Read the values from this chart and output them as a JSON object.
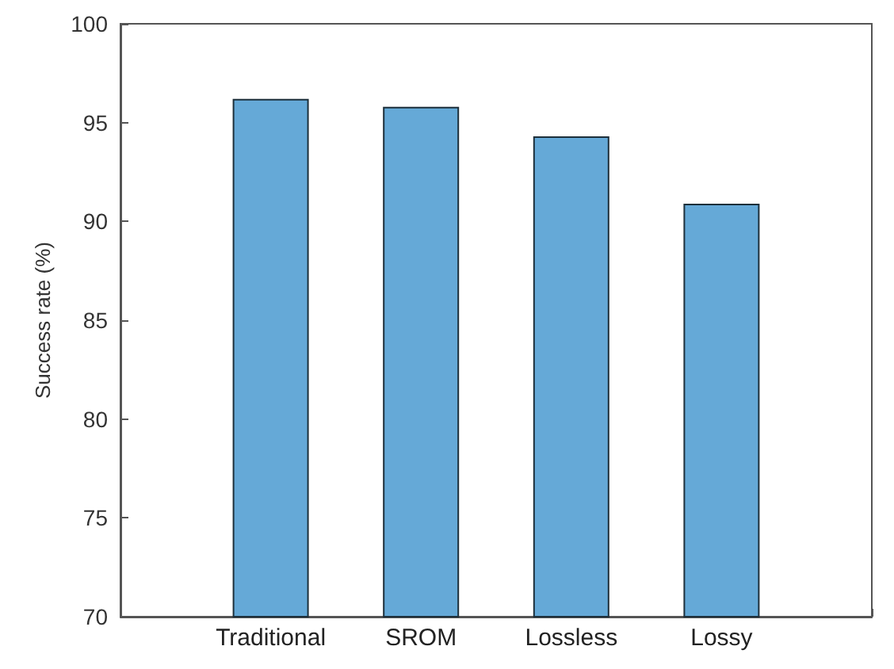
{
  "chart_data": {
    "type": "bar",
    "ylabel": "Success rate (%)",
    "categories": [
      "Traditional",
      "SROM",
      "Lossless",
      "Lossy"
    ],
    "values": [
      96.2,
      95.8,
      94.3,
      90.9
    ],
    "color": "#65a9d7",
    "ylim": [
      70,
      100
    ],
    "yticks": [
      70,
      75,
      80,
      85,
      90,
      95,
      100
    ],
    "grid": false
  }
}
